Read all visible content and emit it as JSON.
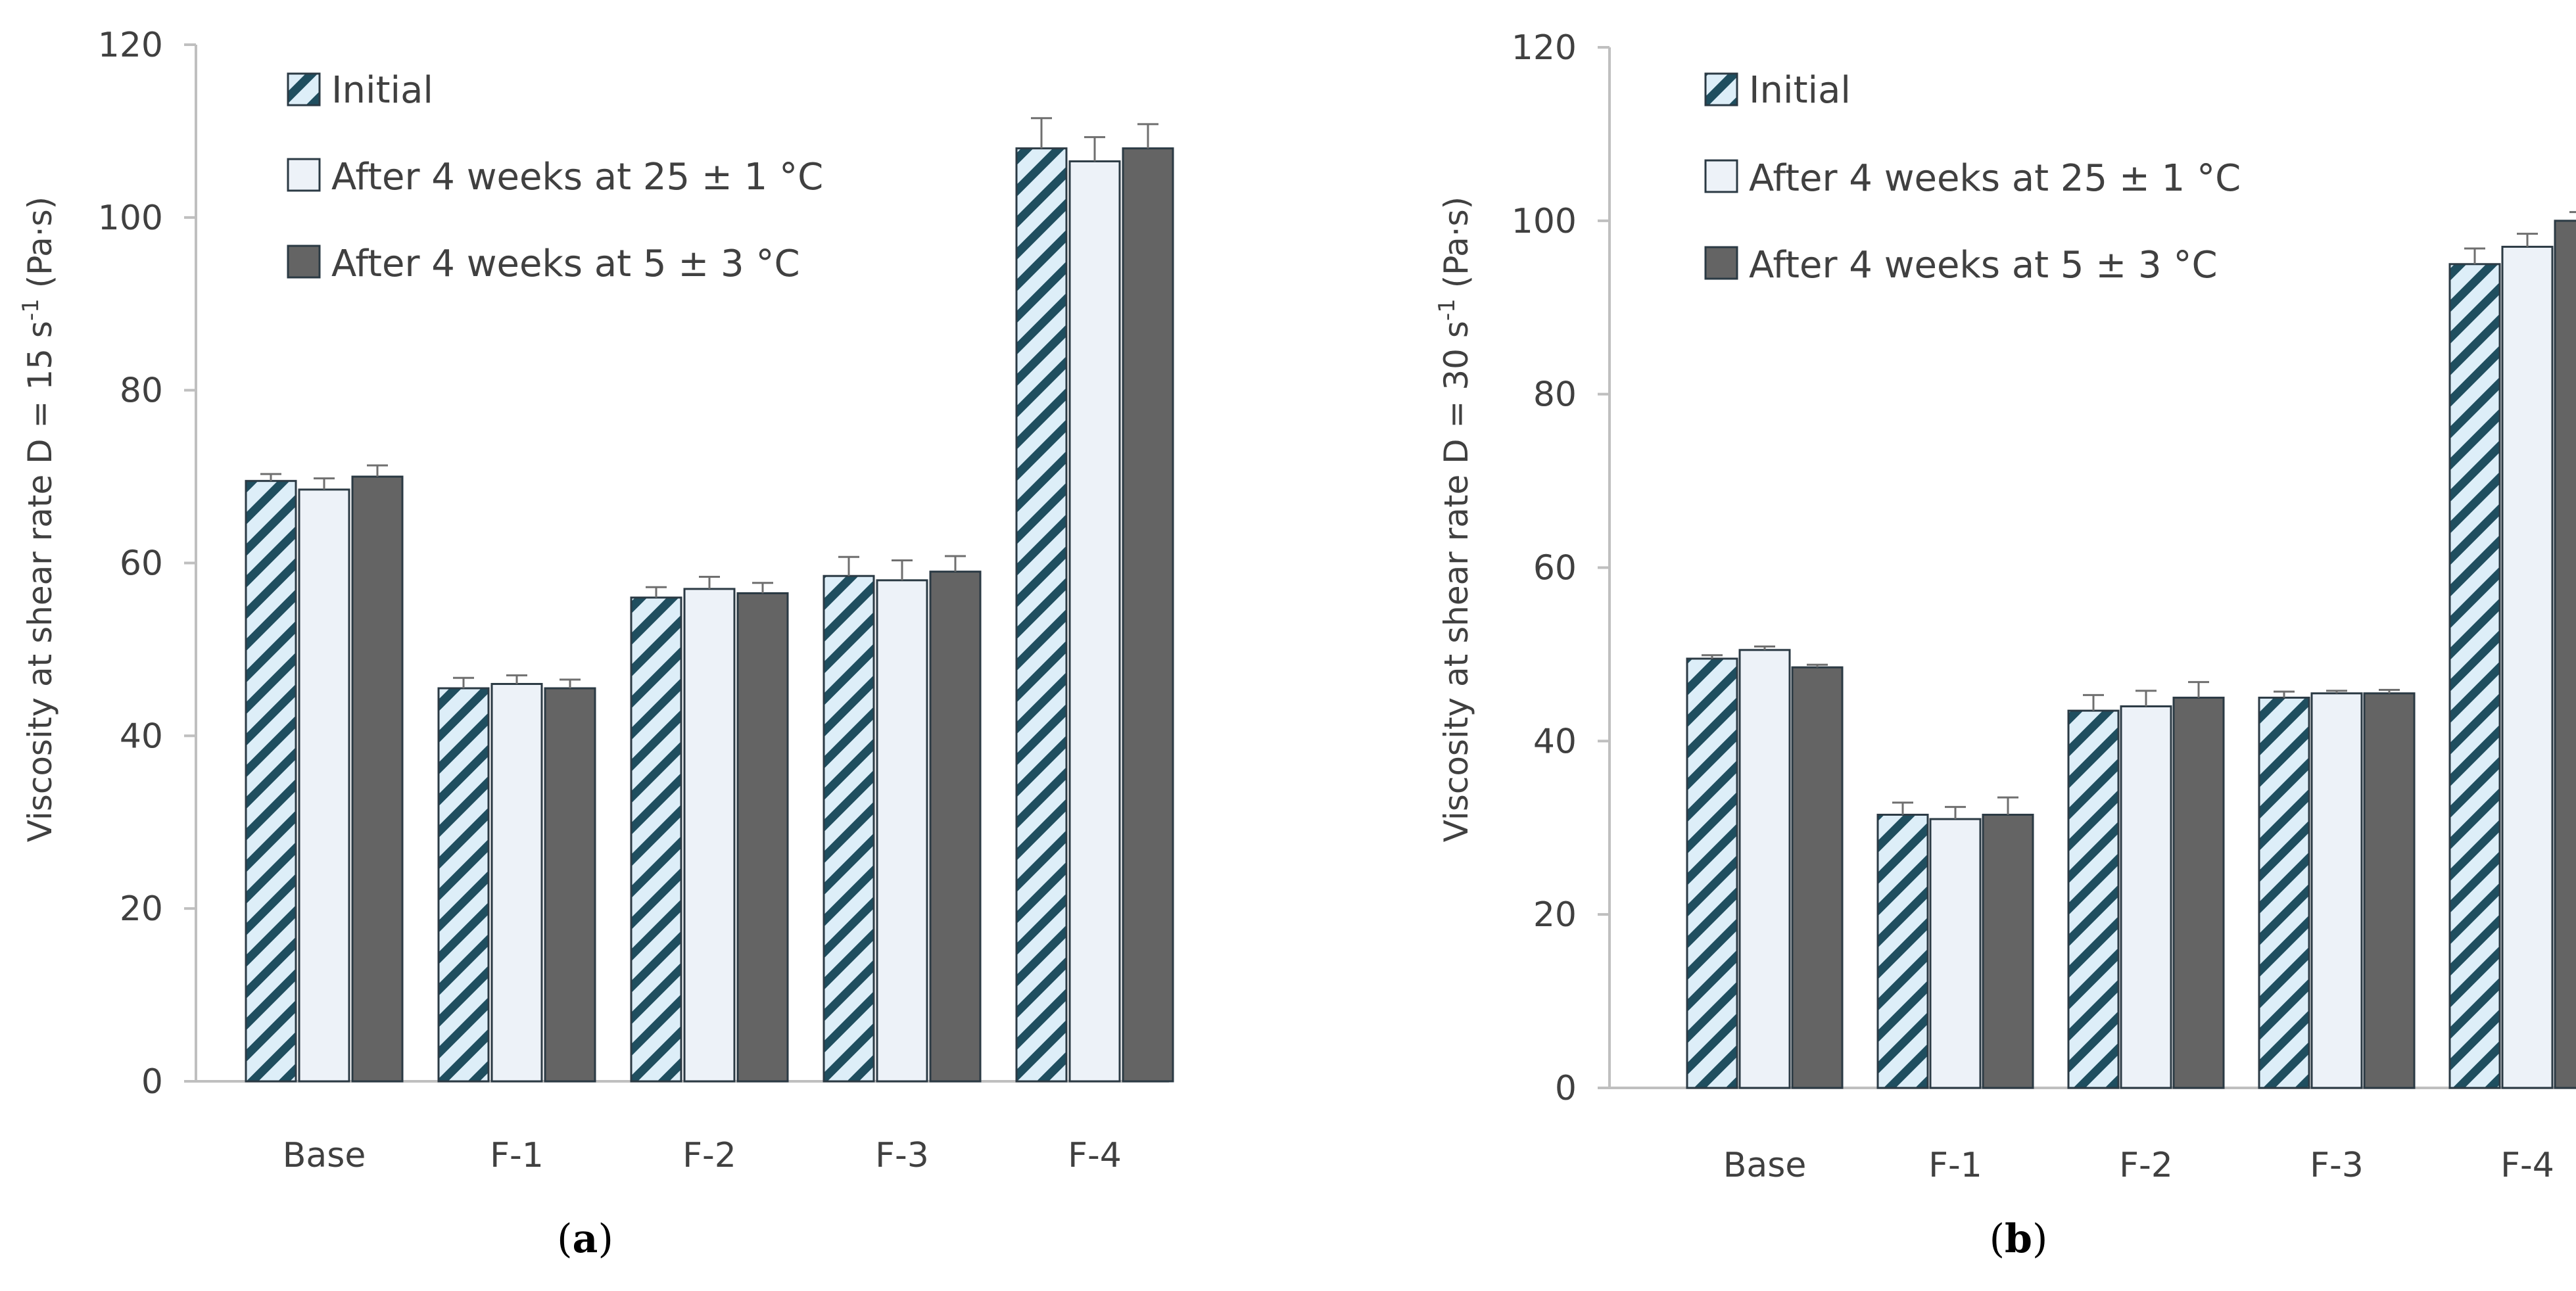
{
  "chart_data": [
    {
      "type": "bar",
      "panel_label": "(a)",
      "panel_letter": "a",
      "ylabel": "Viscosity at shear rate D = 15 s-1 (Pa·s)",
      "ylabel_parts": [
        "Viscosity at shear rate D = 15 s",
        "-1",
        " (Pa·s)"
      ],
      "ylim": [
        0,
        120
      ],
      "yticks": [
        "0",
        "20",
        "40",
        "60",
        "80",
        "100",
        "120"
      ],
      "categories": [
        "Base",
        "F-1",
        "F-2",
        "F-3",
        "F-4"
      ],
      "legend_position": "top-left",
      "series": [
        {
          "name": "Initial",
          "values": [
            69.5,
            45.5,
            56,
            58.5,
            108
          ],
          "errors": [
            0.8,
            1.2,
            1.2,
            2.2,
            3.5
          ]
        },
        {
          "name": "After 4 weeks at 25 ± 1 °C",
          "values": [
            68.5,
            46,
            57,
            58,
            106.5
          ],
          "errors": [
            1.3,
            1.0,
            1.4,
            2.3,
            2.8
          ]
        },
        {
          "name": "After 4 weeks at 5 ± 3 °C",
          "values": [
            70,
            45.5,
            56.5,
            59,
            108
          ],
          "errors": [
            1.3,
            1.0,
            1.2,
            1.8,
            2.8
          ]
        }
      ]
    },
    {
      "type": "bar",
      "panel_label": "(b)",
      "panel_letter": "b",
      "ylabel": "Viscosity at shear rate D = 30 s-1 (Pa·s)",
      "ylabel_parts": [
        "Viscosity at shear rate D = 30 s",
        "-1",
        " (Pa·s)"
      ],
      "ylim": [
        0,
        120
      ],
      "yticks": [
        "0",
        "20",
        "40",
        "60",
        "80",
        "100",
        "120"
      ],
      "categories": [
        "Base",
        "F-1",
        "F-2",
        "F-3",
        "F-4"
      ],
      "legend_position": "top-left",
      "series": [
        {
          "name": "Initial",
          "values": [
            49.5,
            31.5,
            43.5,
            45,
            95
          ],
          "errors": [
            0.4,
            1.4,
            1.8,
            0.7,
            1.8
          ]
        },
        {
          "name": "After 4 weeks at 25 ± 1 °C",
          "values": [
            50.5,
            31,
            44,
            45.5,
            97
          ],
          "errors": [
            0.4,
            1.4,
            1.8,
            0.3,
            1.5
          ]
        },
        {
          "name": "After 4 weeks at 5 ± 3 °C",
          "values": [
            48.5,
            31.5,
            45,
            45.5,
            100
          ],
          "errors": [
            0.3,
            2.0,
            1.8,
            0.4,
            1.0
          ]
        }
      ]
    }
  ],
  "colors": {
    "axis": "#bfbfbf",
    "text": "#404040",
    "hatch_stroke": "#1f4e5f",
    "hatch_bg": "#ddeef8",
    "light_fill": "#edf2f8",
    "bar_outline": "#2b3a44",
    "dark_fill": "#646464",
    "error_bar": "#6f6f6f"
  }
}
